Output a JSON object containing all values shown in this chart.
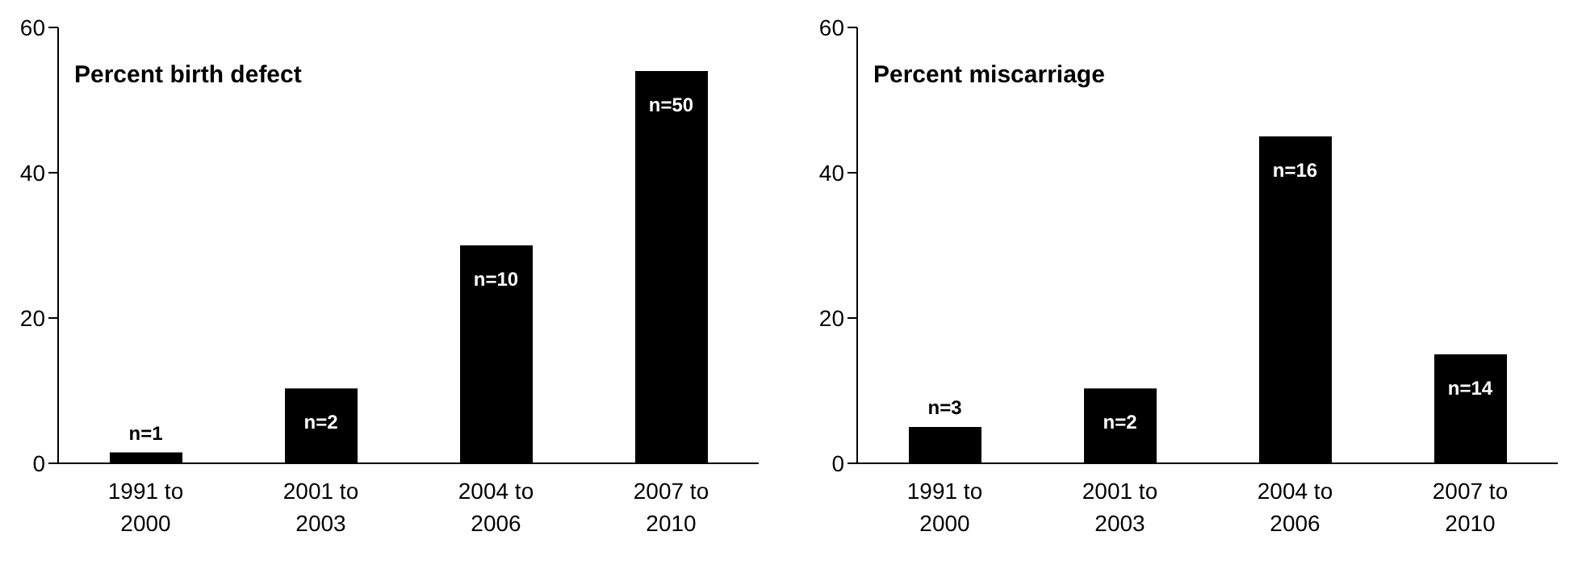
{
  "chart_data": [
    {
      "type": "bar",
      "title": "Percent birth defect",
      "categories": [
        "1991 to 2000",
        "2001 to 2003",
        "2004 to 2006",
        "2007 to 2010"
      ],
      "values": [
        1.5,
        10.3,
        30,
        54
      ],
      "color": "#000000",
      "ylim": [
        0,
        60
      ],
      "yticks": [
        0,
        20,
        40,
        60
      ],
      "grid": false,
      "annotations": [
        "n=1",
        "n=2",
        "n=10",
        "n=50"
      ]
    },
    {
      "type": "bar",
      "title": "Percent miscarriage",
      "categories": [
        "1991 to 2000",
        "2001 to 2003",
        "2004 to 2006",
        "2007 to 2010"
      ],
      "values": [
        5,
        10.3,
        45,
        15
      ],
      "color": "#000000",
      "ylim": [
        0,
        60
      ],
      "yticks": [
        0,
        20,
        40,
        60
      ],
      "grid": false,
      "annotations": [
        "n=3",
        "n=2",
        "n=16",
        "n=14"
      ]
    }
  ]
}
